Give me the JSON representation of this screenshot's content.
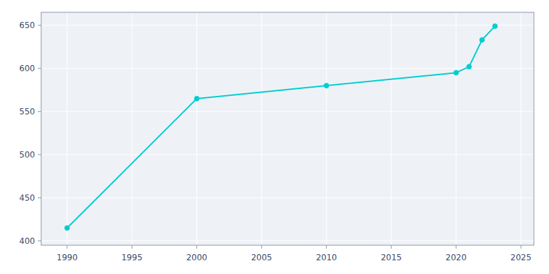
{
  "chart_data": {
    "type": "line",
    "x": [
      1990,
      2000,
      2010,
      2020,
      2021,
      2022,
      2023
    ],
    "values": [
      415,
      565,
      580,
      595,
      602,
      633,
      649
    ],
    "color": "#00CED1",
    "marker": "circle",
    "xlim": [
      1988,
      2026
    ],
    "ylim": [
      395,
      665
    ],
    "xticks": [
      1990,
      1995,
      2000,
      2005,
      2010,
      2015,
      2020,
      2025
    ],
    "yticks": [
      400,
      450,
      500,
      550,
      600,
      650
    ],
    "grid": true
  }
}
